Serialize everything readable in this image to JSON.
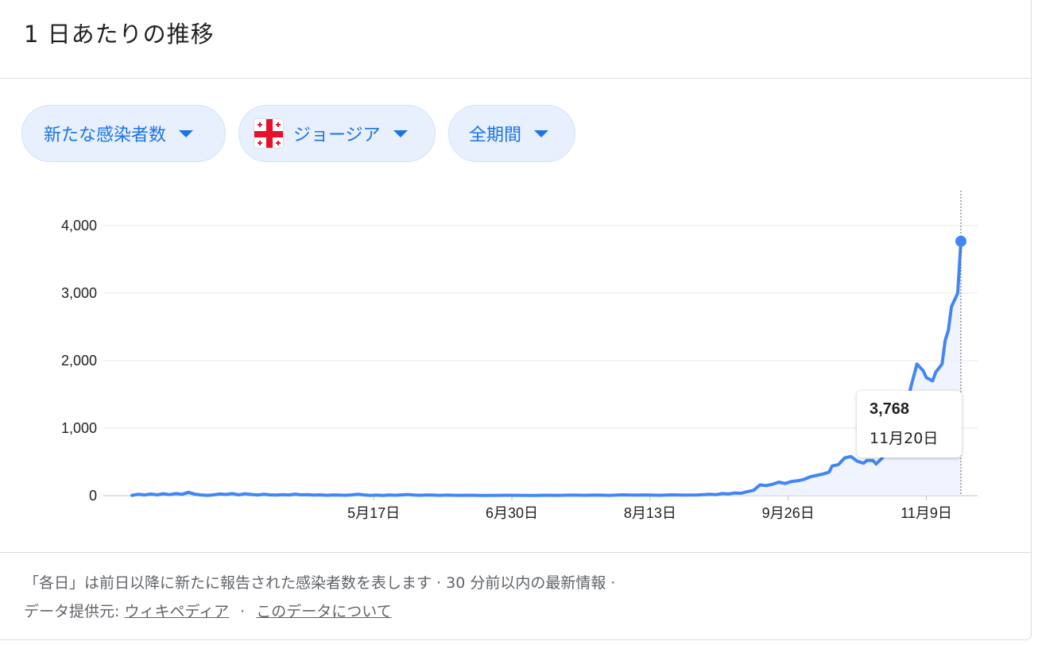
{
  "header": {
    "title": "1 日あたりの推移"
  },
  "filters": {
    "metric": {
      "label": "新たな感染者数"
    },
    "region": {
      "label": "ジョージア",
      "flag": "georgia-flag-icon"
    },
    "period": {
      "label": "全期間"
    }
  },
  "tooltip": {
    "value": "3,768",
    "date": "11月20日"
  },
  "footer": {
    "note": "「各日」は前日以降に新たに報告された感染者数を表します · 30 分前以内の最新情報 ·",
    "source_prefix": "データ提供元:",
    "source_link": "ウィキペディア",
    "separator": "·",
    "about_link": "このデータについて"
  },
  "colors": {
    "line": "#4285f4",
    "fill": "#e8f0fe",
    "chip_text": "#1a73e8",
    "flag_red": "#e8112d"
  },
  "chart_data": {
    "type": "area",
    "ylim": [
      0,
      4000
    ],
    "yticks": [
      0,
      1000,
      2000,
      3000,
      4000
    ],
    "ytick_labels": [
      "0",
      "1,000",
      "2,000",
      "3,000",
      "4,000"
    ],
    "xtick_labels": [
      "5月17日",
      "6月30日",
      "8月13日",
      "9月26日",
      "11月9日"
    ],
    "xtick_days": [
      77,
      121,
      165,
      209,
      253
    ],
    "day_range": [
      0,
      264
    ],
    "highlight": {
      "day": 264,
      "value": 3768
    },
    "points": [
      [
        0,
        5
      ],
      [
        2,
        20
      ],
      [
        4,
        10
      ],
      [
        6,
        25
      ],
      [
        8,
        12
      ],
      [
        10,
        28
      ],
      [
        12,
        15
      ],
      [
        14,
        30
      ],
      [
        16,
        20
      ],
      [
        18,
        50
      ],
      [
        20,
        22
      ],
      [
        22,
        10
      ],
      [
        24,
        5
      ],
      [
        26,
        12
      ],
      [
        28,
        25
      ],
      [
        30,
        18
      ],
      [
        32,
        30
      ],
      [
        34,
        12
      ],
      [
        36,
        28
      ],
      [
        38,
        18
      ],
      [
        40,
        10
      ],
      [
        42,
        20
      ],
      [
        44,
        12
      ],
      [
        46,
        8
      ],
      [
        48,
        14
      ],
      [
        50,
        10
      ],
      [
        52,
        22
      ],
      [
        54,
        12
      ],
      [
        56,
        15
      ],
      [
        58,
        8
      ],
      [
        60,
        12
      ],
      [
        62,
        6
      ],
      [
        64,
        10
      ],
      [
        66,
        8
      ],
      [
        68,
        6
      ],
      [
        70,
        12
      ],
      [
        72,
        20
      ],
      [
        74,
        10
      ],
      [
        76,
        5
      ],
      [
        78,
        8
      ],
      [
        80,
        4
      ],
      [
        82,
        10
      ],
      [
        84,
        6
      ],
      [
        86,
        12
      ],
      [
        88,
        16
      ],
      [
        90,
        8
      ],
      [
        92,
        6
      ],
      [
        94,
        10
      ],
      [
        96,
        8
      ],
      [
        98,
        5
      ],
      [
        100,
        8
      ],
      [
        104,
        5
      ],
      [
        108,
        6
      ],
      [
        112,
        4
      ],
      [
        116,
        5
      ],
      [
        120,
        6
      ],
      [
        124,
        5
      ],
      [
        128,
        4
      ],
      [
        132,
        6
      ],
      [
        136,
        5
      ],
      [
        140,
        8
      ],
      [
        144,
        6
      ],
      [
        148,
        8
      ],
      [
        152,
        5
      ],
      [
        156,
        12
      ],
      [
        160,
        8
      ],
      [
        164,
        10
      ],
      [
        168,
        6
      ],
      [
        172,
        12
      ],
      [
        176,
        8
      ],
      [
        180,
        10
      ],
      [
        184,
        20
      ],
      [
        186,
        15
      ],
      [
        188,
        30
      ],
      [
        190,
        25
      ],
      [
        192,
        40
      ],
      [
        194,
        35
      ],
      [
        196,
        60
      ],
      [
        198,
        80
      ],
      [
        200,
        160
      ],
      [
        202,
        150
      ],
      [
        204,
        170
      ],
      [
        206,
        200
      ],
      [
        208,
        180
      ],
      [
        210,
        210
      ],
      [
        212,
        220
      ],
      [
        214,
        240
      ],
      [
        216,
        280
      ],
      [
        218,
        300
      ],
      [
        220,
        320
      ],
      [
        222,
        350
      ],
      [
        223,
        440
      ],
      [
        225,
        460
      ],
      [
        227,
        560
      ],
      [
        229,
        580
      ],
      [
        231,
        510
      ],
      [
        233,
        480
      ],
      [
        234,
        520
      ],
      [
        236,
        520
      ],
      [
        237,
        470
      ],
      [
        239,
        560
      ],
      [
        240,
        700
      ],
      [
        241,
        900
      ],
      [
        242,
        880
      ],
      [
        243,
        950
      ],
      [
        244,
        1200
      ],
      [
        246,
        1200
      ],
      [
        247,
        1350
      ],
      [
        248,
        1600
      ],
      [
        250,
        1950
      ],
      [
        252,
        1850
      ],
      [
        253,
        1750
      ],
      [
        255,
        1700
      ],
      [
        256,
        1830
      ],
      [
        258,
        1950
      ],
      [
        259,
        2300
      ],
      [
        260,
        2450
      ],
      [
        261,
        2800
      ],
      [
        262,
        2900
      ],
      [
        263,
        3000
      ],
      [
        264,
        3768
      ]
    ]
  }
}
